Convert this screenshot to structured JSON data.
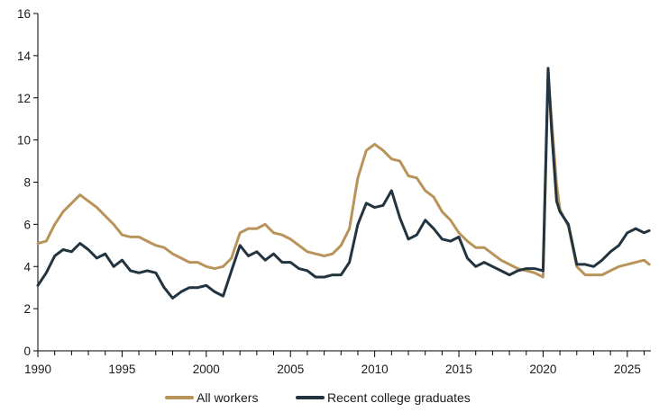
{
  "chart_data": {
    "type": "line",
    "title": "",
    "xlabel": "",
    "ylabel": "",
    "xlim": [
      1990,
      2026.4
    ],
    "ylim": [
      0,
      16
    ],
    "grid": false,
    "legend_position": "bottom",
    "x_ticks": [
      1990,
      1995,
      2000,
      2005,
      2010,
      2015,
      2020,
      2025
    ],
    "x_tick_labels": [
      "1990",
      "1995",
      "2000",
      "2005",
      "2010",
      "2015",
      "2020",
      "2025"
    ],
    "y_ticks": [
      0,
      2,
      4,
      6,
      8,
      10,
      12,
      14,
      16
    ],
    "y_tick_labels": [
      "0",
      "2",
      "4",
      "6",
      "8",
      "10",
      "12",
      "14",
      "16"
    ],
    "series": [
      {
        "name": "All workers",
        "color": "#b8935a",
        "points": [
          [
            1990.0,
            5.1
          ],
          [
            1990.5,
            5.2
          ],
          [
            1991.0,
            6.0
          ],
          [
            1991.5,
            6.6
          ],
          [
            1992.0,
            7.0
          ],
          [
            1992.5,
            7.4
          ],
          [
            1993.0,
            7.1
          ],
          [
            1993.5,
            6.8
          ],
          [
            1994.0,
            6.4
          ],
          [
            1994.5,
            6.0
          ],
          [
            1995.0,
            5.5
          ],
          [
            1995.5,
            5.4
          ],
          [
            1996.0,
            5.4
          ],
          [
            1996.5,
            5.2
          ],
          [
            1997.0,
            5.0
          ],
          [
            1997.5,
            4.9
          ],
          [
            1998.0,
            4.6
          ],
          [
            1998.5,
            4.4
          ],
          [
            1999.0,
            4.2
          ],
          [
            1999.5,
            4.2
          ],
          [
            2000.0,
            4.0
          ],
          [
            2000.5,
            3.9
          ],
          [
            2001.0,
            4.0
          ],
          [
            2001.5,
            4.4
          ],
          [
            2002.0,
            5.6
          ],
          [
            2002.5,
            5.8
          ],
          [
            2003.0,
            5.8
          ],
          [
            2003.5,
            6.0
          ],
          [
            2004.0,
            5.6
          ],
          [
            2004.5,
            5.5
          ],
          [
            2005.0,
            5.3
          ],
          [
            2005.5,
            5.0
          ],
          [
            2006.0,
            4.7
          ],
          [
            2006.5,
            4.6
          ],
          [
            2007.0,
            4.5
          ],
          [
            2007.5,
            4.6
          ],
          [
            2008.0,
            5.0
          ],
          [
            2008.5,
            5.8
          ],
          [
            2009.0,
            8.2
          ],
          [
            2009.5,
            9.5
          ],
          [
            2010.0,
            9.8
          ],
          [
            2010.5,
            9.5
          ],
          [
            2011.0,
            9.1
          ],
          [
            2011.5,
            9.0
          ],
          [
            2012.0,
            8.3
          ],
          [
            2012.5,
            8.2
          ],
          [
            2013.0,
            7.6
          ],
          [
            2013.5,
            7.3
          ],
          [
            2014.0,
            6.6
          ],
          [
            2014.5,
            6.2
          ],
          [
            2015.0,
            5.6
          ],
          [
            2015.5,
            5.2
          ],
          [
            2016.0,
            4.9
          ],
          [
            2016.5,
            4.9
          ],
          [
            2017.0,
            4.6
          ],
          [
            2017.5,
            4.3
          ],
          [
            2018.0,
            4.1
          ],
          [
            2018.5,
            3.9
          ],
          [
            2019.0,
            3.8
          ],
          [
            2019.5,
            3.7
          ],
          [
            2020.0,
            3.5
          ],
          [
            2020.3,
            13.1
          ],
          [
            2020.5,
            11.0
          ],
          [
            2020.8,
            7.9
          ],
          [
            2021.0,
            6.7
          ],
          [
            2021.5,
            5.9
          ],
          [
            2022.0,
            4.0
          ],
          [
            2022.5,
            3.6
          ],
          [
            2023.0,
            3.6
          ],
          [
            2023.5,
            3.6
          ],
          [
            2024.0,
            3.8
          ],
          [
            2024.5,
            4.0
          ],
          [
            2025.0,
            4.1
          ],
          [
            2025.5,
            4.2
          ],
          [
            2026.0,
            4.3
          ],
          [
            2026.3,
            4.1
          ]
        ]
      },
      {
        "name": "Recent college graduates",
        "color": "#223440",
        "points": [
          [
            1990.0,
            3.1
          ],
          [
            1990.5,
            3.7
          ],
          [
            1991.0,
            4.5
          ],
          [
            1991.5,
            4.8
          ],
          [
            1992.0,
            4.7
          ],
          [
            1992.5,
            5.1
          ],
          [
            1993.0,
            4.8
          ],
          [
            1993.5,
            4.4
          ],
          [
            1994.0,
            4.6
          ],
          [
            1994.5,
            4.0
          ],
          [
            1995.0,
            4.3
          ],
          [
            1995.5,
            3.8
          ],
          [
            1996.0,
            3.7
          ],
          [
            1996.5,
            3.8
          ],
          [
            1997.0,
            3.7
          ],
          [
            1997.5,
            3.0
          ],
          [
            1998.0,
            2.5
          ],
          [
            1998.5,
            2.8
          ],
          [
            1999.0,
            3.0
          ],
          [
            1999.5,
            3.0
          ],
          [
            2000.0,
            3.1
          ],
          [
            2000.5,
            2.8
          ],
          [
            2001.0,
            2.6
          ],
          [
            2001.5,
            3.8
          ],
          [
            2002.0,
            5.0
          ],
          [
            2002.5,
            4.5
          ],
          [
            2003.0,
            4.7
          ],
          [
            2003.5,
            4.3
          ],
          [
            2004.0,
            4.6
          ],
          [
            2004.5,
            4.2
          ],
          [
            2005.0,
            4.2
          ],
          [
            2005.5,
            3.9
          ],
          [
            2006.0,
            3.8
          ],
          [
            2006.5,
            3.5
          ],
          [
            2007.0,
            3.5
          ],
          [
            2007.5,
            3.6
          ],
          [
            2008.0,
            3.6
          ],
          [
            2008.5,
            4.2
          ],
          [
            2009.0,
            6.0
          ],
          [
            2009.5,
            7.0
          ],
          [
            2010.0,
            6.8
          ],
          [
            2010.5,
            6.9
          ],
          [
            2011.0,
            7.6
          ],
          [
            2011.5,
            6.3
          ],
          [
            2012.0,
            5.3
          ],
          [
            2012.5,
            5.5
          ],
          [
            2013.0,
            6.2
          ],
          [
            2013.5,
            5.8
          ],
          [
            2014.0,
            5.3
          ],
          [
            2014.5,
            5.2
          ],
          [
            2015.0,
            5.4
          ],
          [
            2015.5,
            4.4
          ],
          [
            2016.0,
            4.0
          ],
          [
            2016.5,
            4.2
          ],
          [
            2017.0,
            4.0
          ],
          [
            2017.5,
            3.8
          ],
          [
            2018.0,
            3.6
          ],
          [
            2018.5,
            3.8
          ],
          [
            2019.0,
            3.9
          ],
          [
            2019.5,
            3.9
          ],
          [
            2020.0,
            3.8
          ],
          [
            2020.3,
            13.4
          ],
          [
            2020.5,
            10.5
          ],
          [
            2020.8,
            7.1
          ],
          [
            2021.0,
            6.6
          ],
          [
            2021.5,
            6.0
          ],
          [
            2022.0,
            4.1
          ],
          [
            2022.5,
            4.1
          ],
          [
            2023.0,
            4.0
          ],
          [
            2023.5,
            4.3
          ],
          [
            2024.0,
            4.7
          ],
          [
            2024.5,
            5.0
          ],
          [
            2025.0,
            5.6
          ],
          [
            2025.5,
            5.8
          ],
          [
            2026.0,
            5.6
          ],
          [
            2026.3,
            5.7
          ]
        ]
      }
    ]
  }
}
